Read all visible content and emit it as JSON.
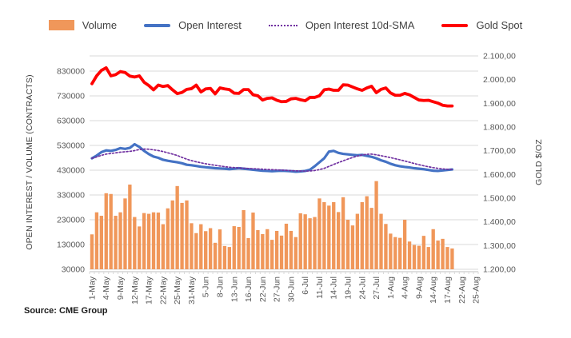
{
  "chart_data": {
    "type": "combo",
    "source": "Source: CME Group",
    "left_axis": {
      "label": "OPEN INTEREST / VOLUME (CONTRACTS)",
      "ticks": [
        "830000",
        "730000",
        "630000",
        "530000",
        "430000",
        "330000",
        "230000",
        "130000",
        "30000"
      ],
      "min": 30000,
      "major_unit": 100000
    },
    "right_axis": {
      "label": "GOLD $/OZ",
      "ticks": [
        "2.100,00",
        "2.000,00",
        "1.900,00",
        "1.800,00",
        "1.700,00",
        "1.600,00",
        "1.500,00",
        "1.400,00",
        "1.300,00",
        "1.200,00"
      ],
      "min": 1200,
      "max": 2100,
      "major_unit": 100
    },
    "x_axis": {
      "total_slots": 82,
      "tick_label_every": 3,
      "visible_tick_labels": [
        "1-May",
        "4-May",
        "9-May",
        "12-May",
        "17-May",
        "22-May",
        "25-May",
        "31-May",
        "5-Jun",
        "8-Jun",
        "13-Jun",
        "16-Jun",
        "22-Jun",
        "27-Jun",
        "30-Jun",
        "6-Jul",
        "11-Jul",
        "14-Jul",
        "19-Jul",
        "24-Jul",
        "27-Jul",
        "1-Aug",
        "4-Aug",
        "9-Aug",
        "14-Aug",
        "17-Aug",
        "22-Aug",
        "25-Aug"
      ]
    },
    "categories": [
      "1-May",
      "2-May",
      "3-May",
      "4-May",
      "5-May",
      "8-May",
      "9-May",
      "10-May",
      "11-May",
      "12-May",
      "15-May",
      "16-May",
      "17-May",
      "18-May",
      "19-May",
      "22-May",
      "23-May",
      "24-May",
      "25-May",
      "26-May",
      "30-May",
      "31-May",
      "1-Jun",
      "2-Jun",
      "5-Jun",
      "6-Jun",
      "7-Jun",
      "8-Jun",
      "9-Jun",
      "12-Jun",
      "13-Jun",
      "14-Jun",
      "15-Jun",
      "16-Jun",
      "20-Jun",
      "21-Jun",
      "22-Jun",
      "23-Jun",
      "26-Jun",
      "27-Jun",
      "28-Jun",
      "29-Jun",
      "30-Jun",
      "3-Jul",
      "5-Jul",
      "6-Jul",
      "7-Jul",
      "10-Jul",
      "11-Jul",
      "12-Jul",
      "13-Jul",
      "14-Jul",
      "17-Jul",
      "18-Jul",
      "19-Jul",
      "20-Jul",
      "21-Jul",
      "24-Jul",
      "25-Jul",
      "26-Jul",
      "27-Jul",
      "28-Jul",
      "31-Jul",
      "1-Aug",
      "2-Aug",
      "3-Aug",
      "4-Aug",
      "7-Aug",
      "8-Aug",
      "9-Aug",
      "10-Aug",
      "11-Aug",
      "14-Aug",
      "15-Aug",
      "16-Aug",
      "17-Aug",
      "18-Aug"
    ],
    "series": [
      {
        "name": "Volume",
        "type": "bar",
        "axis": "left",
        "color": "#F0975A",
        "values": [
          171000,
          260000,
          246000,
          337000,
          334000,
          246000,
          260000,
          316000,
          372000,
          241000,
          203000,
          257000,
          254000,
          260000,
          259000,
          212000,
          276000,
          308000,
          366000,
          298000,
          308000,
          216000,
          176000,
          212000,
          184000,
          196000,
          137000,
          191000,
          124000,
          120000,
          204000,
          201000,
          269000,
          156000,
          259000,
          188000,
          172000,
          192000,
          149000,
          185000,
          166000,
          214000,
          185000,
          160000,
          256000,
          252000,
          236000,
          241000,
          316000,
          301000,
          287000,
          301000,
          261000,
          321000,
          230000,
          207000,
          254000,
          301000,
          325000,
          278000,
          386000,
          254000,
          213000,
          174000,
          160000,
          157000,
          230000,
          142000,
          128000,
          125000,
          165000,
          120000,
          192000,
          146000,
          153000,
          120000,
          114000
        ]
      },
      {
        "name": "Open Interest",
        "type": "line",
        "axis": "left",
        "color": "#4472C4",
        "values": [
          478000,
          489000,
          503000,
          510000,
          508000,
          512000,
          519000,
          516000,
          520000,
          535000,
          524000,
          508000,
          495000,
          485000,
          480000,
          472000,
          468000,
          465000,
          462000,
          458000,
          452000,
          450000,
          447000,
          444000,
          442000,
          440000,
          438000,
          437000,
          436000,
          434000,
          436000,
          438000,
          436000,
          434000,
          432000,
          430000,
          428000,
          427000,
          426000,
          427000,
          428000,
          427000,
          426000,
          424000,
          425000,
          427000,
          432000,
          446000,
          462000,
          478000,
          505000,
          508000,
          500000,
          496000,
          494000,
          492000,
          490000,
          492000,
          488000,
          484000,
          478000,
          470000,
          464000,
          456000,
          450000,
          446000,
          443000,
          441000,
          438000,
          436000,
          434000,
          431000,
          428000,
          427000,
          429000,
          431000,
          433000
        ]
      },
      {
        "name": "Open Interest 10d-SMA",
        "type": "line",
        "line_style": "dotted",
        "axis": "left",
        "color": "#7030A0",
        "values": [
          478000,
          483500,
          490000,
          495000,
          497600,
          500000,
          502700,
          504400,
          506100,
          509000,
          513600,
          515500,
          514700,
          512200,
          509400,
          505400,
          500300,
          495200,
          489400,
          481700,
          474500,
          468700,
          463900,
          459800,
          456000,
          452800,
          449800,
          447000,
          444400,
          442000,
          440400,
          439200,
          438100,
          437100,
          436100,
          435100,
          434100,
          433100,
          432100,
          431400,
          430600,
          429500,
          428500,
          427500,
          426800,
          426500,
          426900,
          428800,
          432400,
          437500,
          445200,
          453300,
          460700,
          467900,
          474800,
          481300,
          487100,
          491700,
          494300,
          494900,
          492200,
          488400,
          484800,
          480800,
          476400,
          471800,
          467100,
          462000,
          457000,
          452200,
          447800,
          443900,
          440300,
          437400,
          435300,
          433800,
          432500
        ]
      },
      {
        "name": "Gold Spot",
        "type": "line",
        "axis": "right",
        "color": "#FF0000",
        "values": [
          1983,
          2016,
          2039,
          2050,
          2016,
          2021,
          2034,
          2030,
          2015,
          2011,
          2016,
          1989,
          1975,
          1957,
          1977,
          1971,
          1975,
          1957,
          1941,
          1946,
          1959,
          1962,
          1977,
          1948,
          1961,
          1963,
          1940,
          1965,
          1961,
          1958,
          1943,
          1942,
          1958,
          1958,
          1936,
          1932,
          1914,
          1921,
          1923,
          1913,
          1907,
          1908,
          1919,
          1921,
          1915,
          1911,
          1925,
          1925,
          1932,
          1957,
          1960,
          1955,
          1955,
          1978,
          1977,
          1969,
          1961,
          1955,
          1965,
          1972,
          1945,
          1959,
          1965,
          1944,
          1934,
          1934,
          1942,
          1936,
          1925,
          1914,
          1912,
          1913,
          1907,
          1901,
          1892,
          1889,
          1889
        ]
      }
    ],
    "colors": {
      "gridline": "#D9D9D9",
      "axis_line": "#BFBFBF",
      "tick_text": "#595959"
    }
  }
}
